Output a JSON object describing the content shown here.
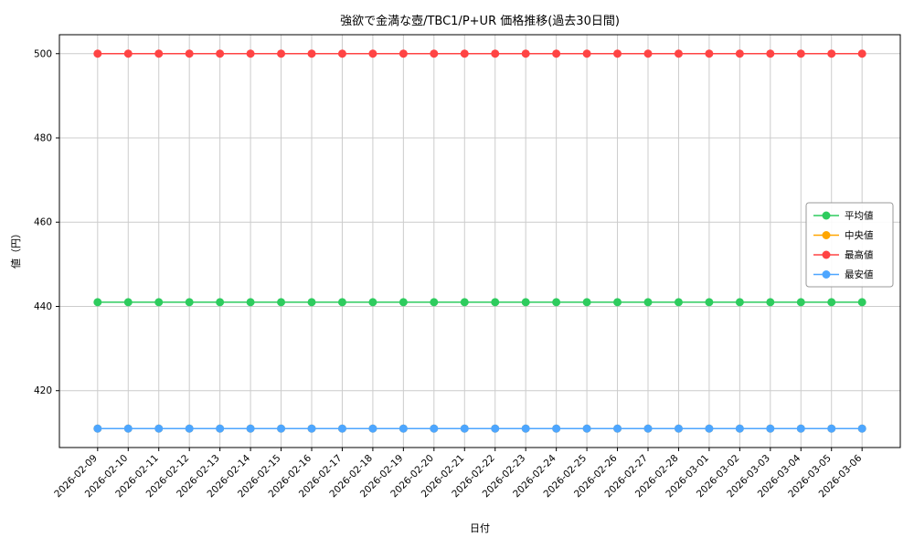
{
  "chart_data": {
    "type": "line",
    "title": "強欲で金満な壺/TBC1/P+UR 価格推移(過去30日間)",
    "xlabel": "日付",
    "ylabel": "値（円）",
    "grid": true,
    "legend_position": "center right",
    "ylim": [
      406.5,
      504.5
    ],
    "yticks": [
      420,
      440,
      460,
      480,
      500
    ],
    "categories": [
      "2026-02-09",
      "2026-02-10",
      "2026-02-11",
      "2026-02-12",
      "2026-02-13",
      "2026-02-14",
      "2026-02-15",
      "2026-02-16",
      "2026-02-17",
      "2026-02-18",
      "2026-02-19",
      "2026-02-20",
      "2026-02-21",
      "2026-02-22",
      "2026-02-23",
      "2026-02-24",
      "2026-02-25",
      "2026-02-26",
      "2026-02-27",
      "2026-02-28",
      "2026-03-01",
      "2026-03-02",
      "2026-03-03",
      "2026-03-04",
      "2026-03-05",
      "2026-03-06"
    ],
    "series": [
      {
        "key": "average",
        "name": "平均値",
        "color": "#2ecc5e",
        "values": [
          441,
          441,
          441,
          441,
          441,
          441,
          441,
          441,
          441,
          441,
          441,
          441,
          441,
          441,
          441,
          441,
          441,
          441,
          441,
          441,
          441,
          441,
          441,
          441,
          441,
          441
        ]
      },
      {
        "key": "median",
        "name": "中央値",
        "color": "#ffa600",
        "values": [
          411,
          411,
          411,
          411,
          411,
          411,
          411,
          411,
          411,
          411,
          411,
          411,
          411,
          411,
          411,
          411,
          411,
          411,
          411,
          411,
          411,
          411,
          411,
          411,
          411,
          411
        ]
      },
      {
        "key": "max",
        "name": "最高値",
        "color": "#ff4444",
        "values": [
          500,
          500,
          500,
          500,
          500,
          500,
          500,
          500,
          500,
          500,
          500,
          500,
          500,
          500,
          500,
          500,
          500,
          500,
          500,
          500,
          500,
          500,
          500,
          500,
          500,
          500
        ]
      },
      {
        "key": "min",
        "name": "最安値",
        "color": "#4da6ff",
        "values": [
          411,
          411,
          411,
          411,
          411,
          411,
          411,
          411,
          411,
          411,
          411,
          411,
          411,
          411,
          411,
          411,
          411,
          411,
          411,
          411,
          411,
          411,
          411,
          411,
          411,
          411
        ]
      }
    ]
  }
}
